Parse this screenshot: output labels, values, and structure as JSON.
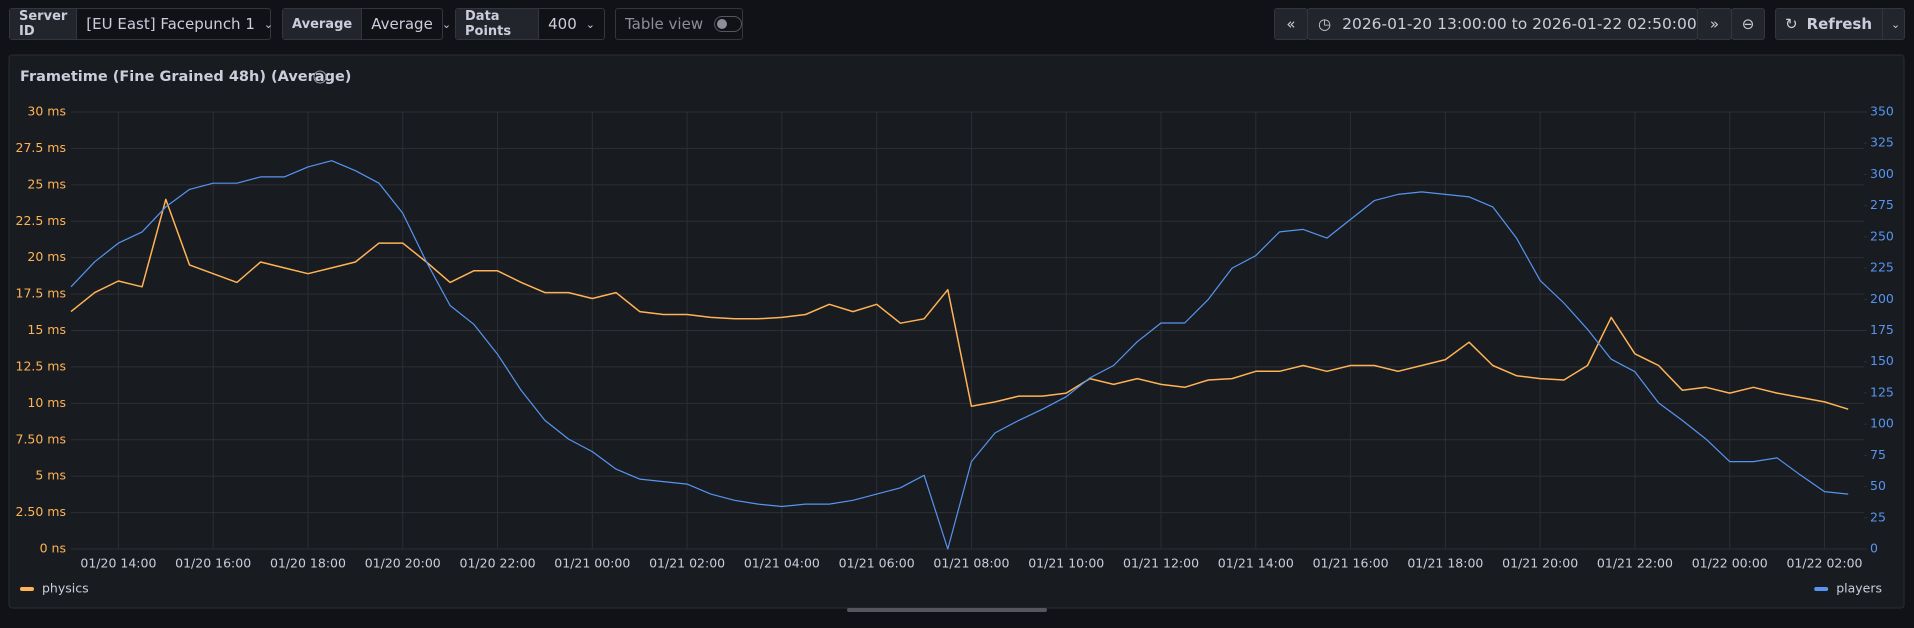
{
  "toolbar": {
    "server_label": "Server ID",
    "server_value": "[EU East] Facepunch 1",
    "agg_label": "Average",
    "agg_value": "Average",
    "points_label": "Data Points",
    "points_value": "400",
    "table_view": "Table view",
    "time_range": "2026-01-20 13:00:00 to 2026-01-22 02:50:00",
    "refresh": "Refresh"
  },
  "chart_data": {
    "type": "line",
    "title": "Frametime (Fine Grained 48h) (Average)",
    "grid": true,
    "legend": "bottom",
    "x": [
      "01/20 13:00",
      "01/20 13:30",
      "01/20 14:00",
      "01/20 14:30",
      "01/20 15:00",
      "01/20 15:30",
      "01/20 16:00",
      "01/20 16:30",
      "01/20 17:00",
      "01/20 17:30",
      "01/20 18:00",
      "01/20 18:30",
      "01/20 19:00",
      "01/20 19:30",
      "01/20 20:00",
      "01/20 20:30",
      "01/20 21:00",
      "01/20 21:30",
      "01/20 22:00",
      "01/20 22:30",
      "01/20 23:00",
      "01/20 23:30",
      "01/21 00:00",
      "01/21 00:30",
      "01/21 01:00",
      "01/21 01:30",
      "01/21 02:00",
      "01/21 02:30",
      "01/21 03:00",
      "01/21 03:30",
      "01/21 04:00",
      "01/21 04:30",
      "01/21 05:00",
      "01/21 05:30",
      "01/21 06:00",
      "01/21 06:30",
      "01/21 07:00",
      "01/21 07:30",
      "01/21 08:00",
      "01/21 08:30",
      "01/21 09:00",
      "01/21 09:30",
      "01/21 10:00",
      "01/21 10:30",
      "01/21 11:00",
      "01/21 11:30",
      "01/21 12:00",
      "01/21 12:30",
      "01/21 13:00",
      "01/21 13:30",
      "01/21 14:00",
      "01/21 14:30",
      "01/21 15:00",
      "01/21 15:30",
      "01/21 16:00",
      "01/21 16:30",
      "01/21 17:00",
      "01/21 17:30",
      "01/21 18:00",
      "01/21 18:30",
      "01/21 19:00",
      "01/21 19:30",
      "01/21 20:00",
      "01/21 20:30",
      "01/21 21:00",
      "01/21 21:30",
      "01/21 22:00",
      "01/21 22:30",
      "01/21 23:00",
      "01/21 23:30",
      "01/22 00:00",
      "01/22 00:30",
      "01/22 01:00",
      "01/22 01:30",
      "01/22 02:00",
      "01/22 02:30"
    ],
    "xlim": [
      "01/20 13:00",
      "01/22 02:50"
    ],
    "xticks": [
      "01/20 14:00",
      "01/20 16:00",
      "01/20 18:00",
      "01/20 20:00",
      "01/20 22:00",
      "01/21 00:00",
      "01/21 02:00",
      "01/21 04:00",
      "01/21 06:00",
      "01/21 08:00",
      "01/21 10:00",
      "01/21 12:00",
      "01/21 14:00",
      "01/21 16:00",
      "01/21 18:00",
      "01/21 20:00",
      "01/21 22:00",
      "01/22 00:00",
      "01/22 02:00"
    ],
    "ylim": [
      0,
      30
    ],
    "yticks": [
      {
        "value": 0,
        "label": "0 ns"
      },
      {
        "value": 2.5,
        "label": "2.50 ms"
      },
      {
        "value": 5,
        "label": "5 ms"
      },
      {
        "value": 7.5,
        "label": "7.50 ms"
      },
      {
        "value": 10,
        "label": "10 ms"
      },
      {
        "value": 12.5,
        "label": "12.5 ms"
      },
      {
        "value": 15,
        "label": "15 ms"
      },
      {
        "value": 17.5,
        "label": "17.5 ms"
      },
      {
        "value": 20,
        "label": "20 ms"
      },
      {
        "value": 22.5,
        "label": "22.5 ms"
      },
      {
        "value": 25,
        "label": "25 ms"
      },
      {
        "value": 27.5,
        "label": "27.5 ms"
      },
      {
        "value": 30,
        "label": "30 ms"
      }
    ],
    "y2lim": [
      0,
      350
    ],
    "y2ticks": [
      0,
      25,
      50,
      75,
      100,
      125,
      150,
      175,
      200,
      225,
      250,
      275,
      300,
      325,
      350
    ],
    "series": [
      {
        "name": "physics",
        "color": "#ffb357",
        "values": [
          16.3,
          17.6,
          18.4,
          18.0,
          24.0,
          19.5,
          18.9,
          18.3,
          19.7,
          19.3,
          18.9,
          19.3,
          19.7,
          21.0,
          21.0,
          19.7,
          18.3,
          19.1,
          19.1,
          18.3,
          17.6,
          17.6,
          17.2,
          17.6,
          16.3,
          16.1,
          16.1,
          15.9,
          15.8,
          15.8,
          15.9,
          16.1,
          16.8,
          16.3,
          16.8,
          15.5,
          15.8,
          17.8,
          9.8,
          10.1,
          10.5,
          10.5,
          10.7,
          11.7,
          11.3,
          11.7,
          11.3,
          11.1,
          11.6,
          11.7,
          12.2,
          12.2,
          12.6,
          12.2,
          12.6,
          12.6,
          12.2,
          12.6,
          13.0,
          14.2,
          12.6,
          11.9,
          11.7,
          11.6,
          12.6,
          15.9,
          13.4,
          12.6,
          10.9,
          11.1,
          10.7,
          11.1,
          10.7,
          10.4,
          10.1,
          9.6
        ]
      },
      {
        "name": "players",
        "color": "#5794f2",
        "axis": "y2",
        "values": [
          210,
          230,
          245,
          254,
          274,
          288,
          293,
          293,
          298,
          298,
          306,
          311,
          303,
          293,
          269,
          230,
          195,
          180,
          156,
          127,
          103,
          88,
          78,
          64,
          56,
          54,
          52,
          44,
          39,
          36,
          34,
          36,
          36,
          39,
          44,
          49,
          59,
          0,
          70,
          93,
          103,
          112,
          122,
          137,
          147,
          166,
          181,
          181,
          200,
          225,
          235,
          254,
          256,
          249,
          264,
          279,
          284,
          286,
          284,
          282,
          274,
          249,
          215,
          197,
          176,
          152,
          142,
          117,
          103,
          88,
          70,
          70,
          73,
          59,
          46,
          44
        ]
      }
    ]
  }
}
